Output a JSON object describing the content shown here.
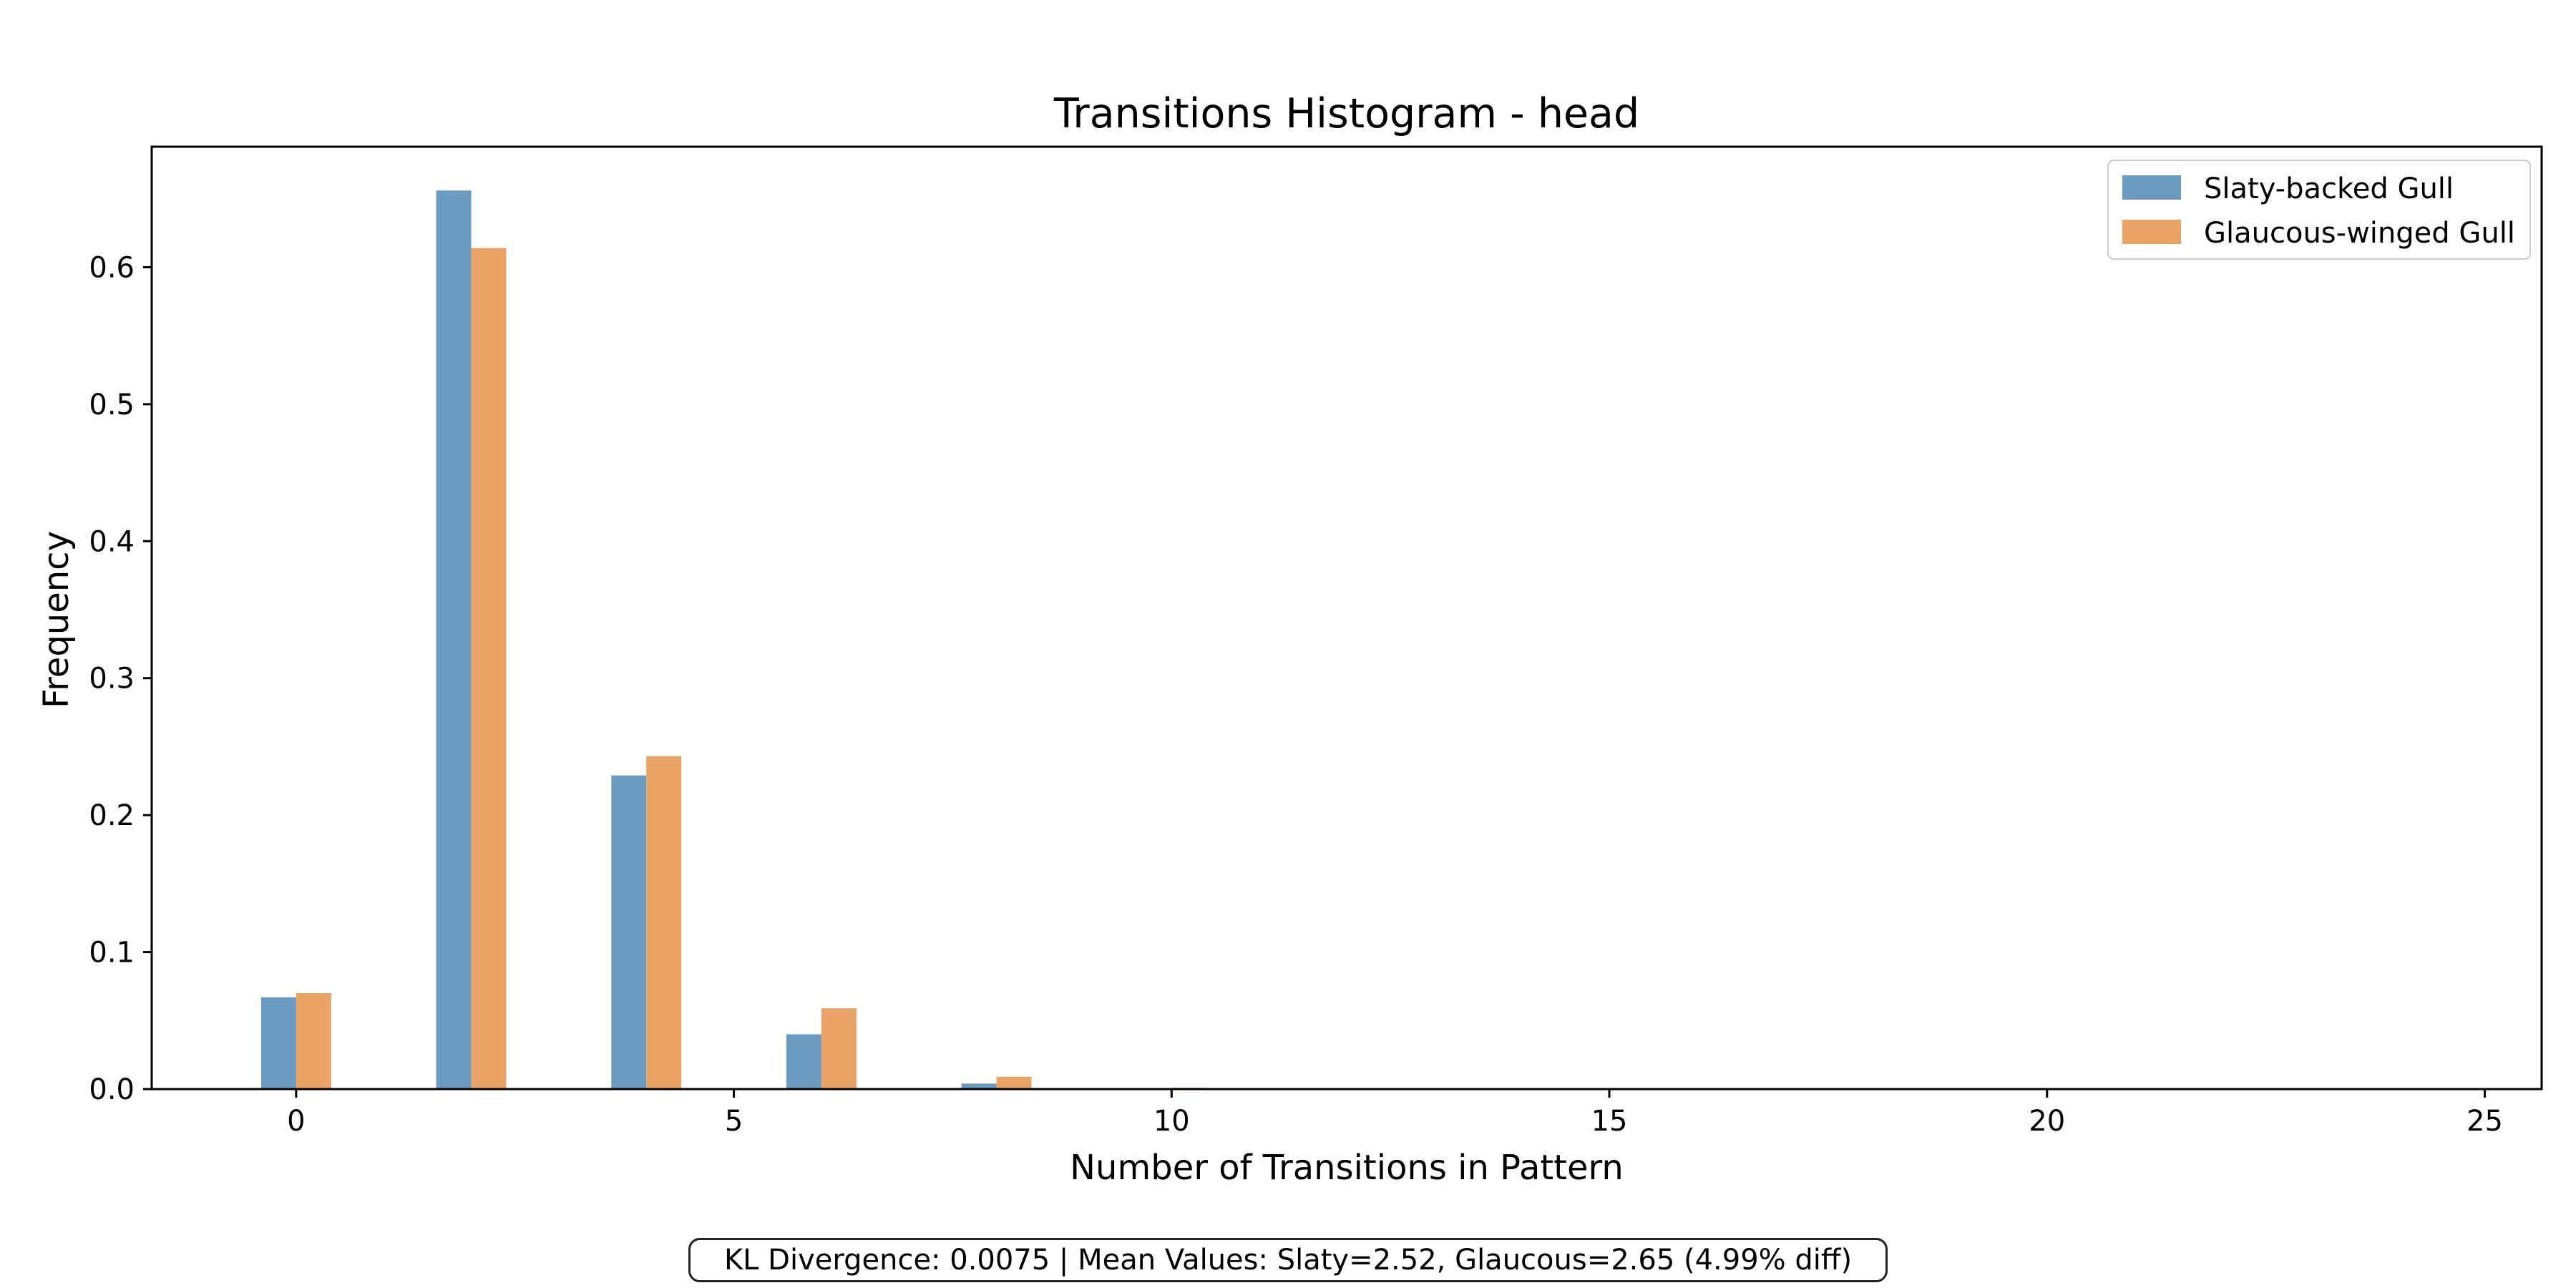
{
  "chart_data": {
    "type": "bar",
    "title": "Transitions Histogram - head",
    "xlabel": "Number of Transitions in Pattern",
    "ylabel": "Frequency",
    "xlim": [
      -1.65,
      25.65
    ],
    "ylim": [
      0,
      0.688
    ],
    "xticks": [
      0,
      5,
      10,
      15,
      20,
      25
    ],
    "yticks": [
      0.0,
      0.1,
      0.2,
      0.3,
      0.4,
      0.5,
      0.6
    ],
    "ytick_labels": [
      "0.0",
      "0.1",
      "0.2",
      "0.3",
      "0.4",
      "0.5",
      "0.6"
    ],
    "grid": false,
    "legend_position": "top-right",
    "x": [
      0,
      2,
      4,
      6,
      8,
      10
    ],
    "series": [
      {
        "name": "Slaty-backed Gull",
        "color": "#6b9bc0",
        "values": [
          0.067,
          0.656,
          0.229,
          0.04,
          0.004,
          0.0
        ]
      },
      {
        "name": "Glaucous-winged Gull",
        "color": "#eaa366",
        "values": [
          0.07,
          0.614,
          0.243,
          0.059,
          0.009,
          0.001
        ]
      }
    ]
  },
  "footer": {
    "text": "KL Divergence: 0.0075 | Mean Values: Slaty=2.52, Glaucous=2.65 (4.99% diff)"
  }
}
